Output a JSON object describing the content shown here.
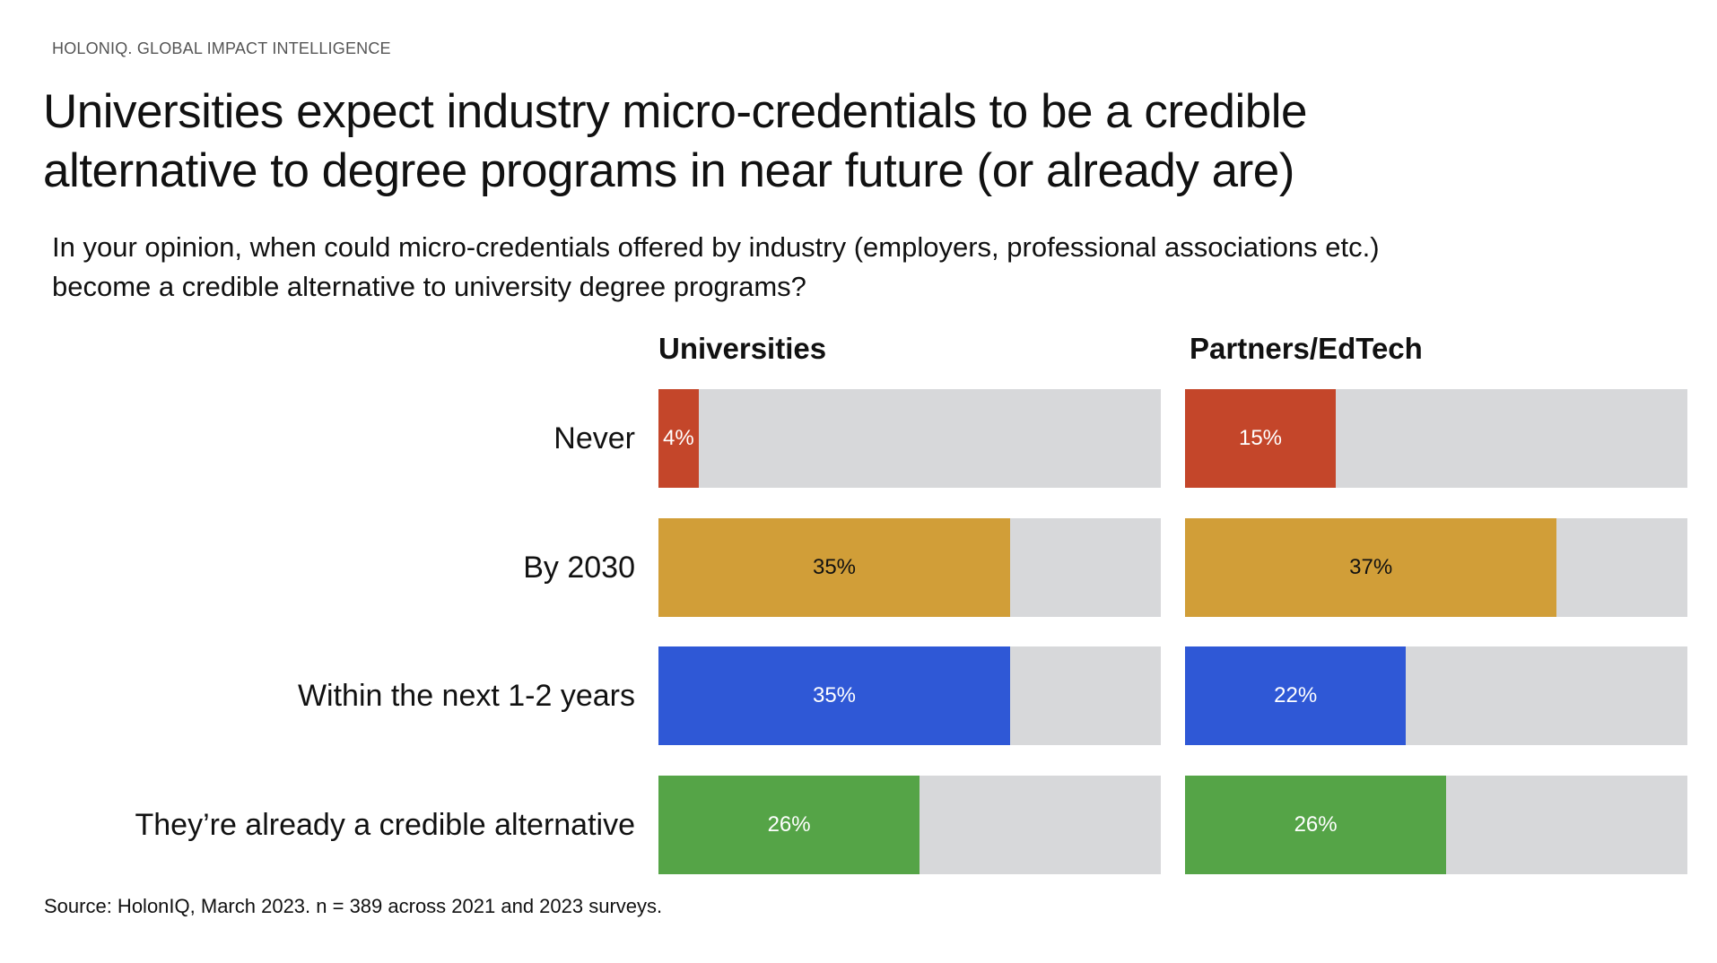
{
  "brand": "HOLONIQ. GLOBAL IMPACT INTELLIGENCE",
  "title_line1": "Universities expect industry micro-credentials to be a credible",
  "title_line2": "alternative to degree programs in near future (or already are)",
  "subtitle_line1": "In your opinion, when could micro-credentials offered by industry (employers, professional associations etc.)",
  "subtitle_line2": "become a credible alternative to university degree programs?",
  "source": "Source: HolonIQ, March 2023. n = 389 across 2021 and 2023 surveys.",
  "chart_data": {
    "type": "bar",
    "orientation": "horizontal",
    "categories": [
      "Never",
      "By 2030",
      "Within the next 1-2 years",
      "They’re already a credible alternative"
    ],
    "category_colors": [
      "#C4462A",
      "#D19E38",
      "#2F58D6",
      "#55A447"
    ],
    "value_label_colors": [
      "#ffffff",
      "#111111",
      "#ffffff",
      "#ffffff"
    ],
    "track_color": "#D7D8DA",
    "xlim": [
      0,
      50
    ],
    "grid": false,
    "panels": [
      {
        "title": "Universities",
        "values": [
          4,
          35,
          35,
          26
        ],
        "labels": [
          "4%",
          "35%",
          "35%",
          "26%"
        ]
      },
      {
        "title": "Partners/EdTech",
        "values": [
          15,
          37,
          22,
          26
        ],
        "labels": [
          "15%",
          "37%",
          "22%",
          "26%"
        ]
      }
    ]
  }
}
